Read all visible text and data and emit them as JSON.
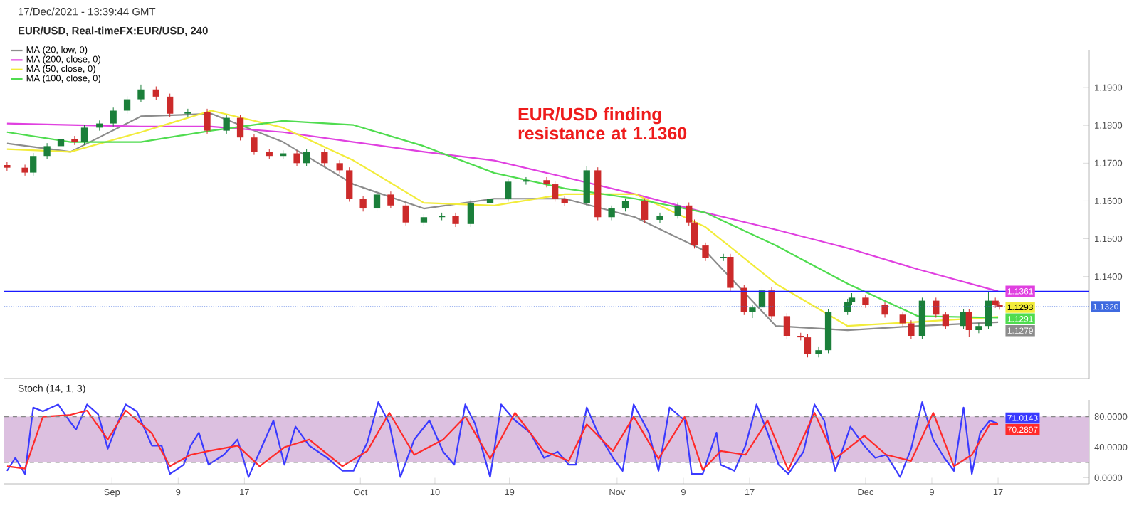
{
  "chart_data": [
    {
      "type": "candlestick",
      "title": "EUR/USD, Real-timeFX:EUR/USD, 240",
      "annotations": [
        "17/Dec/2021 - 13:39:44 GMT",
        "EUR/USD finding resistance at 1.1360"
      ],
      "x": [
        "2021-08-19T08:00",
        "2021-08-21T12:00",
        "2021-08-22T12:00",
        "2021-08-24T04:00",
        "2021-08-25T20:00",
        "2021-08-27T12:00",
        "2021-08-28T16:00",
        "2021-08-30T12:00",
        "2021-09-01T04:00",
        "2021-09-02T20:00",
        "2021-09-04T12:00",
        "2021-09-06T08:00",
        "2021-09-08T00:00",
        "2021-09-10T04:00",
        "2021-09-12T12:00",
        "2021-09-14T20:00",
        "2021-09-16T12:00",
        "2021-09-18T04:00",
        "2021-09-20T00:00",
        "2021-09-21T16:00",
        "2021-09-23T08:00",
        "2021-09-24T12:00",
        "2021-09-26T16:00",
        "2021-09-28T12:00",
        "2021-09-29T16:00",
        "2021-10-01T08:00",
        "2021-10-03T00:00",
        "2021-10-04T16:00",
        "2021-10-06T12:00",
        "2021-10-08T16:00",
        "2021-10-10T20:00",
        "2021-10-12T12:00",
        "2021-10-14T08:00",
        "2021-10-16T16:00",
        "2021-10-18T20:00",
        "2021-10-21T00:00",
        "2021-10-23T12:00",
        "2021-10-24T12:00",
        "2021-10-25T16:00",
        "2021-10-28T08:00",
        "2021-10-29T16:00",
        "2021-10-31T08:00",
        "2021-11-02T00:00",
        "2021-11-04T08:00",
        "2021-11-06T04:00",
        "2021-11-08T08:00",
        "2021-11-09T16:00",
        "2021-11-10T08:00",
        "2021-11-11T16:00",
        "2021-11-13T20:00",
        "2021-11-14T16:00",
        "2021-11-16T08:00",
        "2021-11-17T08:00",
        "2021-11-18T12:00",
        "2021-11-19T16:00",
        "2021-11-21T12:00",
        "2021-11-23T04:00",
        "2021-11-24T00:00",
        "2021-11-25T08:00",
        "2021-11-26T12:00",
        "2021-11-28T20:00",
        "2021-11-29T08:00",
        "2021-12-01T00:00",
        "2021-12-03T08:00",
        "2021-12-05T12:00",
        "2021-12-06T12:00",
        "2021-12-07T20:00",
        "2021-12-09T12:00",
        "2021-12-10T16:00",
        "2021-12-12T20:00",
        "2021-12-13T12:00",
        "2021-12-14T16:00",
        "2021-12-15T20:00",
        "2021-12-16T16:00",
        "2021-12-17T04:00"
      ],
      "ohlc": [
        [
          1.1695,
          1.1703,
          1.168,
          1.1688
        ],
        [
          1.1688,
          1.1696,
          1.1667,
          1.1675
        ],
        [
          1.1675,
          1.1727,
          1.1667,
          1.1719
        ],
        [
          1.1719,
          1.1753,
          1.1711,
          1.1745
        ],
        [
          1.1745,
          1.1772,
          1.1737,
          1.1764
        ],
        [
          1.1764,
          1.1772,
          1.1748,
          1.1756
        ],
        [
          1.1756,
          1.1802,
          1.1748,
          1.1794
        ],
        [
          1.1794,
          1.1813,
          1.1786,
          1.1805
        ],
        [
          1.1805,
          1.1847,
          1.1797,
          1.1839
        ],
        [
          1.1839,
          1.1877,
          1.1831,
          1.1869
        ],
        [
          1.1869,
          1.1908,
          1.1861,
          1.1895
        ],
        [
          1.1895,
          1.1903,
          1.1868,
          1.1876
        ],
        [
          1.1876,
          1.1884,
          1.1823,
          1.1831
        ],
        [
          1.1831,
          1.1844,
          1.1823,
          1.1836
        ],
        [
          1.1836,
          1.1844,
          1.1778,
          1.1786
        ],
        [
          1.1786,
          1.1828,
          1.1778,
          1.182
        ],
        [
          1.182,
          1.1828,
          1.176,
          1.1768
        ],
        [
          1.1768,
          1.1776,
          1.1722,
          1.173
        ],
        [
          1.173,
          1.1738,
          1.1711,
          1.1719
        ],
        [
          1.1719,
          1.1734,
          1.1711,
          1.1726
        ],
        [
          1.1726,
          1.1734,
          1.1692,
          1.17
        ],
        [
          1.17,
          1.1738,
          1.1692,
          1.173
        ],
        [
          1.173,
          1.1738,
          1.1692,
          1.17
        ],
        [
          1.17,
          1.1708,
          1.1673,
          1.1681
        ],
        [
          1.1681,
          1.1689,
          1.1598,
          1.1606
        ],
        [
          1.1606,
          1.1614,
          1.1572,
          1.158
        ],
        [
          1.158,
          1.1625,
          1.1572,
          1.1617
        ],
        [
          1.1617,
          1.1625,
          1.158,
          1.1588
        ],
        [
          1.1588,
          1.1596,
          1.1535,
          1.1543
        ],
        [
          1.1543,
          1.1565,
          1.1535,
          1.1557
        ],
        [
          1.1557,
          1.1569,
          1.1549,
          1.1561
        ],
        [
          1.1561,
          1.1569,
          1.1531,
          1.1539
        ],
        [
          1.1539,
          1.1603,
          1.1531,
          1.1595
        ],
        [
          1.1595,
          1.1614,
          1.1587,
          1.1606
        ],
        [
          1.1606,
          1.1659,
          1.1598,
          1.1651
        ],
        [
          1.1651,
          1.1663,
          1.1643,
          1.1655
        ],
        [
          1.1655,
          1.1663,
          1.1636,
          1.1644
        ],
        [
          1.1644,
          1.1652,
          1.1598,
          1.1606
        ],
        [
          1.1606,
          1.1614,
          1.1587,
          1.1595
        ],
        [
          1.1595,
          1.1692,
          1.1587,
          1.1681
        ],
        [
          1.1681,
          1.1689,
          1.1549,
          1.1557
        ],
        [
          1.1557,
          1.1588,
          1.1549,
          1.158
        ],
        [
          1.158,
          1.1607,
          1.1572,
          1.1599
        ],
        [
          1.1599,
          1.1607,
          1.1542,
          1.155
        ],
        [
          1.155,
          1.1569,
          1.1542,
          1.1561
        ],
        [
          1.1561,
          1.1596,
          1.1553,
          1.1588
        ],
        [
          1.1588,
          1.1596,
          1.1535,
          1.1543
        ],
        [
          1.1543,
          1.1551,
          1.1474,
          1.1482
        ],
        [
          1.1482,
          1.149,
          1.1441,
          1.1449
        ],
        [
          1.1449,
          1.146,
          1.1441,
          1.1452
        ],
        [
          1.1452,
          1.146,
          1.1362,
          1.137
        ],
        [
          1.137,
          1.1378,
          1.1298,
          1.1306
        ],
        [
          1.1306,
          1.1326,
          1.129,
          1.1318
        ],
        [
          1.1318,
          1.1371,
          1.131,
          1.1363
        ],
        [
          1.1363,
          1.1371,
          1.1287,
          1.1295
        ],
        [
          1.1295,
          1.1303,
          1.1235,
          1.1243
        ],
        [
          1.1243,
          1.1251,
          1.1231,
          1.1239
        ],
        [
          1.1239,
          1.1247,
          1.1186,
          1.1194
        ],
        [
          1.1194,
          1.1213,
          1.1186,
          1.1205
        ],
        [
          1.1205,
          1.1314,
          1.1197,
          1.1306
        ],
        [
          1.1306,
          1.1341,
          1.1298,
          1.1333
        ],
        [
          1.1333,
          1.1356,
          1.1325,
          1.1344
        ],
        [
          1.1344,
          1.1352,
          1.1317,
          1.1325
        ],
        [
          1.1325,
          1.1333,
          1.1291,
          1.1299
        ],
        [
          1.1299,
          1.1307,
          1.1268,
          1.1276
        ],
        [
          1.1276,
          1.1284,
          1.1235,
          1.1243
        ],
        [
          1.1243,
          1.1344,
          1.1235,
          1.1336
        ],
        [
          1.1336,
          1.1344,
          1.1291,
          1.1299
        ],
        [
          1.1299,
          1.1307,
          1.1261,
          1.1269
        ],
        [
          1.1269,
          1.1314,
          1.1261,
          1.1306
        ],
        [
          1.1306,
          1.1314,
          1.124,
          1.1258
        ],
        [
          1.1258,
          1.1277,
          1.125,
          1.1269
        ],
        [
          1.1269,
          1.1358,
          1.1261,
          1.1336
        ],
        [
          1.1336,
          1.1344,
          1.1317,
          1.1325
        ],
        [
          1.1325,
          1.1333,
          1.1312,
          1.132
        ]
      ],
      "colors": [
        "#cc2a2a",
        "#cc2a2a",
        "#1b7f3a",
        "#1b7f3a",
        "#1b7f3a",
        "#cc2a2a",
        "#1b7f3a",
        "#1b7f3a",
        "#1b7f3a",
        "#1b7f3a",
        "#1b7f3a",
        "#cc2a2a",
        "#cc2a2a",
        "#1b7f3a",
        "#cc2a2a",
        "#1b7f3a",
        "#cc2a2a",
        "#cc2a2a",
        "#cc2a2a",
        "#1b7f3a",
        "#cc2a2a",
        "#1b7f3a",
        "#cc2a2a",
        "#cc2a2a",
        "#cc2a2a",
        "#cc2a2a",
        "#1b7f3a",
        "#cc2a2a",
        "#cc2a2a",
        "#1b7f3a",
        "#1b7f3a",
        "#cc2a2a",
        "#1b7f3a",
        "#1b7f3a",
        "#1b7f3a",
        "#1b7f3a",
        "#cc2a2a",
        "#cc2a2a",
        "#cc2a2a",
        "#1b7f3a",
        "#cc2a2a",
        "#1b7f3a",
        "#1b7f3a",
        "#cc2a2a",
        "#1b7f3a",
        "#1b7f3a",
        "#cc2a2a",
        "#cc2a2a",
        "#cc2a2a",
        "#1b7f3a",
        "#cc2a2a",
        "#cc2a2a",
        "#1b7f3a",
        "#1b7f3a",
        "#cc2a2a",
        "#cc2a2a",
        "#cc2a2a",
        "#cc2a2a",
        "#1b7f3a",
        "#1b7f3a",
        "#1b7f3a",
        "#1b7f3a",
        "#cc2a2a",
        "#cc2a2a",
        "#cc2a2a",
        "#cc2a2a",
        "#1b7f3a",
        "#cc2a2a",
        "#cc2a2a",
        "#1b7f3a",
        "#cc2a2a",
        "#1b7f3a",
        "#1b7f3a",
        "#cc2a2a",
        "#cc2a2a"
      ],
      "series": [
        {
          "name": "MA (20, low, 0)",
          "type": "line",
          "color": "#8c8c8c",
          "x": [
            "2021-08-19T08:00",
            "2021-08-27T00:00",
            "2021-09-04T12:00",
            "2021-09-13T00:00",
            "2021-09-21T16:00",
            "2021-09-30T04:00",
            "2021-10-08T16:00",
            "2021-10-17T04:00",
            "2021-10-25T16:00",
            "2021-11-03T04:00",
            "2021-11-11T16:00",
            "2021-11-20T04:00",
            "2021-11-28T20:00",
            "2021-12-07T08:00",
            "2021-12-17T00:00"
          ],
          "values": [
            1.1752,
            1.173,
            1.1824,
            1.1831,
            1.1756,
            1.1644,
            1.158,
            1.1606,
            1.1606,
            1.1557,
            1.1467,
            1.1269,
            1.1258,
            1.1269,
            1.1279
          ],
          "value_labels": [
            null,
            null,
            null,
            null,
            null,
            null,
            null,
            null,
            null,
            null,
            null,
            null,
            null,
            null,
            "1.1279"
          ]
        },
        {
          "name": "MA (200, close, 0)",
          "type": "line",
          "color": "#e040e0",
          "x": [
            "2021-08-19T08:00",
            "2021-08-27T00:00",
            "2021-09-04T12:00",
            "2021-09-13T00:00",
            "2021-09-21T16:00",
            "2021-09-30T04:00",
            "2021-10-08T16:00",
            "2021-10-17T04:00",
            "2021-10-25T16:00",
            "2021-11-03T04:00",
            "2021-11-11T16:00",
            "2021-11-20T04:00",
            "2021-11-28T20:00",
            "2021-12-07T08:00",
            "2021-12-17T00:00"
          ],
          "values": [
            1.1805,
            1.1801,
            1.1797,
            1.1797,
            1.1782,
            1.1756,
            1.173,
            1.1707,
            1.1663,
            1.1618,
            1.1569,
            1.1524,
            1.1475,
            1.1419,
            1.1361
          ],
          "value_labels": [
            null,
            null,
            null,
            null,
            null,
            null,
            null,
            null,
            null,
            null,
            null,
            null,
            null,
            null,
            "1.1361"
          ]
        },
        {
          "name": "MA (50, close, 0)",
          "type": "line",
          "color": "#f2ec3a",
          "x": [
            "2021-08-19T08:00",
            "2021-08-27T00:00",
            "2021-09-04T12:00",
            "2021-09-13T00:00",
            "2021-09-21T16:00",
            "2021-09-30T04:00",
            "2021-10-08T16:00",
            "2021-10-17T04:00",
            "2021-10-25T16:00",
            "2021-11-03T04:00",
            "2021-11-11T16:00",
            "2021-11-20T04:00",
            "2021-11-28T20:00",
            "2021-12-07T08:00",
            "2021-12-17T00:00"
          ],
          "values": [
            1.1737,
            1.173,
            1.1782,
            1.1839,
            1.1794,
            1.1707,
            1.1595,
            1.1588,
            1.1618,
            1.1618,
            1.1531,
            1.1381,
            1.1269,
            1.128,
            1.1293
          ],
          "value_labels": [
            null,
            null,
            null,
            null,
            null,
            null,
            null,
            null,
            null,
            null,
            null,
            null,
            null,
            null,
            "1.1293"
          ]
        },
        {
          "name": "MA (100, close, 0)",
          "type": "line",
          "color": "#4fdc4f",
          "x": [
            "2021-08-19T08:00",
            "2021-08-27T00:00",
            "2021-09-04T12:00",
            "2021-09-13T00:00",
            "2021-09-21T16:00",
            "2021-09-30T04:00",
            "2021-10-08T16:00",
            "2021-10-17T04:00",
            "2021-10-25T16:00",
            "2021-11-03T04:00",
            "2021-11-11T16:00",
            "2021-11-20T04:00",
            "2021-11-28T20:00",
            "2021-12-07T08:00",
            "2021-12-17T00:00"
          ],
          "values": [
            1.1782,
            1.1756,
            1.1756,
            1.1786,
            1.1812,
            1.1801,
            1.1745,
            1.1674,
            1.1633,
            1.1606,
            1.1569,
            1.1482,
            1.1381,
            1.1295,
            1.1291
          ],
          "value_labels": [
            null,
            null,
            null,
            null,
            null,
            null,
            null,
            null,
            null,
            null,
            null,
            null,
            null,
            null,
            "1.1291"
          ]
        }
      ],
      "xlim": [
        "2021-08-19",
        "2021-12-28"
      ],
      "ylim": [
        1.113,
        1.2
      ],
      "yticks": [
        {
          "value": 1.14,
          "label": "1.1400"
        },
        {
          "value": 1.15,
          "label": "1.1500"
        },
        {
          "value": 1.16,
          "label": "1.1600"
        },
        {
          "value": 1.17,
          "label": "1.1700"
        },
        {
          "value": 1.18,
          "label": "1.1800"
        },
        {
          "value": 1.19,
          "label": "1.1900"
        }
      ],
      "ref_lines": [
        {
          "axis": "y",
          "value": 1.136,
          "color": "#1a1aff",
          "line_style": "solid"
        },
        {
          "axis": "y",
          "value": 1.132,
          "label": "1.1320",
          "color": "#3f6ae0",
          "line_style": "dotted"
        }
      ],
      "legend": "top left",
      "tick_labels": "y"
    },
    {
      "type": "line",
      "title": "Stoch (14, 1, 3)",
      "series": [
        {
          "color": "#3a3aff",
          "x": [
            "2021-08-19T08:00",
            "2021-08-20T08:00",
            "2021-08-21T12:00",
            "2021-08-22T12:00",
            "2021-08-23T16:00",
            "2021-08-25T12:00",
            "2021-08-26T20:00",
            "2021-08-27T16:00",
            "2021-08-29T00:00",
            "2021-08-30T08:00",
            "2021-08-31T12:00",
            "2021-09-01T20:00",
            "2021-09-02T16:00",
            "2021-09-04T00:00",
            "2021-09-05T20:00",
            "2021-09-07T00:00",
            "2021-09-08T00:00",
            "2021-09-09T16:00",
            "2021-09-10T12:00",
            "2021-09-11T12:00",
            "2021-09-12T16:00",
            "2021-09-14T12:00",
            "2021-09-16T04:00",
            "2021-09-17T12:00",
            "2021-09-18T20:00",
            "2021-09-20T12:00",
            "2021-09-21T20:00",
            "2021-09-23T04:00",
            "2021-09-24T20:00",
            "2021-09-27T00:00",
            "2021-09-28T20:00",
            "2021-09-30T04:00",
            "2021-10-01T20:00",
            "2021-10-03T04:00",
            "2021-10-04T12:00",
            "2021-10-05T20:00",
            "2021-10-07T12:00",
            "2021-10-09T08:00",
            "2021-10-11T00:00",
            "2021-10-12T08:00",
            "2021-10-13T16:00",
            "2021-10-14T20:00",
            "2021-10-16T16:00",
            "2021-10-18T00:00",
            "2021-10-19T16:00",
            "2021-10-21T12:00",
            "2021-10-23T04:00",
            "2021-10-24T20:00",
            "2021-10-26T04:00",
            "2021-10-27T00:00",
            "2021-10-28T08:00",
            "2021-10-29T16:00",
            "2021-10-31T12:00",
            "2021-11-01T16:00",
            "2021-11-03T00:00",
            "2021-11-04T20:00",
            "2021-11-06T00:00",
            "2021-11-07T08:00",
            "2021-11-09T04:00",
            "2021-11-10T00:00",
            "2021-11-11T08:00",
            "2021-11-13T00:00",
            "2021-11-13T12:00",
            "2021-11-15T04:00",
            "2021-11-16T12:00",
            "2021-11-17T20:00",
            "2021-11-19T04:00",
            "2021-11-20T12:00",
            "2021-11-21T16:00",
            "2021-11-23T12:00",
            "2021-11-24T20:00",
            "2021-11-26T00:00",
            "2021-11-27T08:00",
            "2021-11-29T04:00",
            "2021-11-30T20:00",
            "2021-12-02T04:00",
            "2021-12-03T12:00",
            "2021-12-05T04:00",
            "2021-12-06T12:00",
            "2021-12-07T20:00",
            "2021-12-09T04:00",
            "2021-12-10T12:00",
            "2021-12-11T16:00",
            "2021-12-12T20:00",
            "2021-12-13T20:00",
            "2021-12-14T20:00",
            "2021-12-16T00:00",
            "2021-12-17T00:00"
          ],
          "values": [
            9,
            26,
            5,
            92,
            87,
            96,
            75,
            63,
            96,
            83,
            38,
            75,
            96,
            87,
            42,
            42,
            5,
            17,
            42,
            59,
            17,
            30,
            50,
            1,
            34,
            75,
            17,
            67,
            42,
            26,
            9,
            9,
            46,
            99,
            71,
            1,
            50,
            75,
            34,
            17,
            96,
            71,
            1,
            96,
            75,
            59,
            26,
            34,
            17,
            17,
            92,
            59,
            26,
            9,
            96,
            59,
            9,
            92,
            75,
            5,
            5,
            59,
            17,
            9,
            42,
            96,
            59,
            17,
            5,
            34,
            96,
            75,
            9,
            67,
            42,
            26,
            30,
            1,
            38,
            99,
            50,
            26,
            9,
            92,
            5,
            59,
            75,
            71.0143
          ],
          "value_labels": [
            null,
            null,
            null,
            null,
            null,
            null,
            null,
            null,
            null,
            null,
            null,
            null,
            null,
            null,
            null,
            null,
            null,
            null,
            null,
            null,
            null,
            null,
            null,
            null,
            null,
            null,
            null,
            null,
            null,
            null,
            null,
            null,
            null,
            null,
            null,
            null,
            null,
            null,
            null,
            null,
            null,
            null,
            null,
            null,
            null,
            null,
            null,
            null,
            null,
            null,
            null,
            null,
            null,
            null,
            null,
            null,
            null,
            null,
            null,
            null,
            null,
            null,
            null,
            null,
            null,
            null,
            null,
            null,
            null,
            null,
            null,
            null,
            null,
            null,
            null,
            null,
            null,
            null,
            null,
            null,
            null,
            null,
            null,
            null,
            null,
            null,
            null,
            "71.0143"
          ]
        },
        {
          "color": "#ff2a2a",
          "x": [
            "2021-08-19T08:00",
            "2021-08-21T12:00",
            "2021-08-23T16:00",
            "2021-08-26T20:00",
            "2021-08-29T00:00",
            "2021-08-31T12:00",
            "2021-09-02T16:00",
            "2021-09-05T20:00",
            "2021-09-08T00:00",
            "2021-09-10T12:00",
            "2021-09-12T16:00",
            "2021-09-16T04:00",
            "2021-09-18T20:00",
            "2021-09-21T20:00",
            "2021-09-24T20:00",
            "2021-09-28T20:00",
            "2021-10-01T20:00",
            "2021-10-04T12:00",
            "2021-10-07T12:00",
            "2021-10-11T00:00",
            "2021-10-13T16:00",
            "2021-10-16T16:00",
            "2021-10-19T16:00",
            "2021-10-23T04:00",
            "2021-10-26T04:00",
            "2021-10-28T08:00",
            "2021-10-31T12:00",
            "2021-11-03T00:00",
            "2021-11-06T00:00",
            "2021-11-09T04:00",
            "2021-11-11T08:00",
            "2021-11-13T12:00",
            "2021-11-16T12:00",
            "2021-11-19T04:00",
            "2021-11-21T16:00",
            "2021-11-24T20:00",
            "2021-11-27T08:00",
            "2021-11-30T20:00",
            "2021-12-03T12:00",
            "2021-12-06T12:00",
            "2021-12-09T04:00",
            "2021-12-11T16:00",
            "2021-12-13T20:00",
            "2021-12-16T00:00",
            "2021-12-17T00:00"
          ],
          "values": [
            15,
            12,
            80,
            82,
            88,
            50,
            88,
            58,
            15,
            30,
            35,
            42,
            15,
            40,
            50,
            15,
            35,
            85,
            30,
            50,
            80,
            25,
            85,
            35,
            22,
            70,
            35,
            80,
            25,
            80,
            10,
            35,
            30,
            75,
            10,
            85,
            25,
            55,
            30,
            22,
            85,
            15,
            30,
            70,
            70.2897
          ],
          "value_labels": [
            null,
            null,
            null,
            null,
            null,
            null,
            null,
            null,
            null,
            null,
            null,
            null,
            null,
            null,
            null,
            null,
            null,
            null,
            null,
            null,
            null,
            null,
            null,
            null,
            null,
            null,
            null,
            null,
            null,
            null,
            null,
            null,
            null,
            null,
            null,
            null,
            null,
            null,
            null,
            null,
            null,
            null,
            null,
            null,
            "70.2897"
          ]
        }
      ],
      "xlim": [
        "2021-08-19",
        "2021-12-28"
      ],
      "ylim": [
        -8,
        102
      ],
      "xticks": [
        {
          "value": "2021-09-01",
          "label": "Sep"
        },
        {
          "value": "2021-09-09",
          "label": "9"
        },
        {
          "value": "2021-09-17",
          "label": "17"
        },
        {
          "value": "2021-10-01",
          "label": "Oct"
        },
        {
          "value": "2021-10-10",
          "label": "10"
        },
        {
          "value": "2021-10-19",
          "label": "19"
        },
        {
          "value": "2021-11-01",
          "label": "Nov"
        },
        {
          "value": "2021-11-09",
          "label": "9"
        },
        {
          "value": "2021-11-17",
          "label": "17"
        },
        {
          "value": "2021-12-01",
          "label": "Dec"
        },
        {
          "value": "2021-12-09",
          "label": "9"
        },
        {
          "value": "2021-12-17",
          "label": "17"
        }
      ],
      "yticks": [
        {
          "value": 0,
          "label": "0.0000"
        },
        {
          "value": 40,
          "label": "40.0000"
        },
        {
          "value": 80,
          "label": "80.0000"
        }
      ],
      "bands": [
        {
          "axis": "y",
          "from": 20,
          "to": 80,
          "color": "#dcc0e0"
        }
      ],
      "ref_lines": [
        {
          "axis": "y",
          "value": 20,
          "color": "#888888",
          "line_style": "dashed"
        },
        {
          "axis": "y",
          "value": 80,
          "color": "#888888",
          "line_style": "dashed"
        }
      ]
    }
  ]
}
